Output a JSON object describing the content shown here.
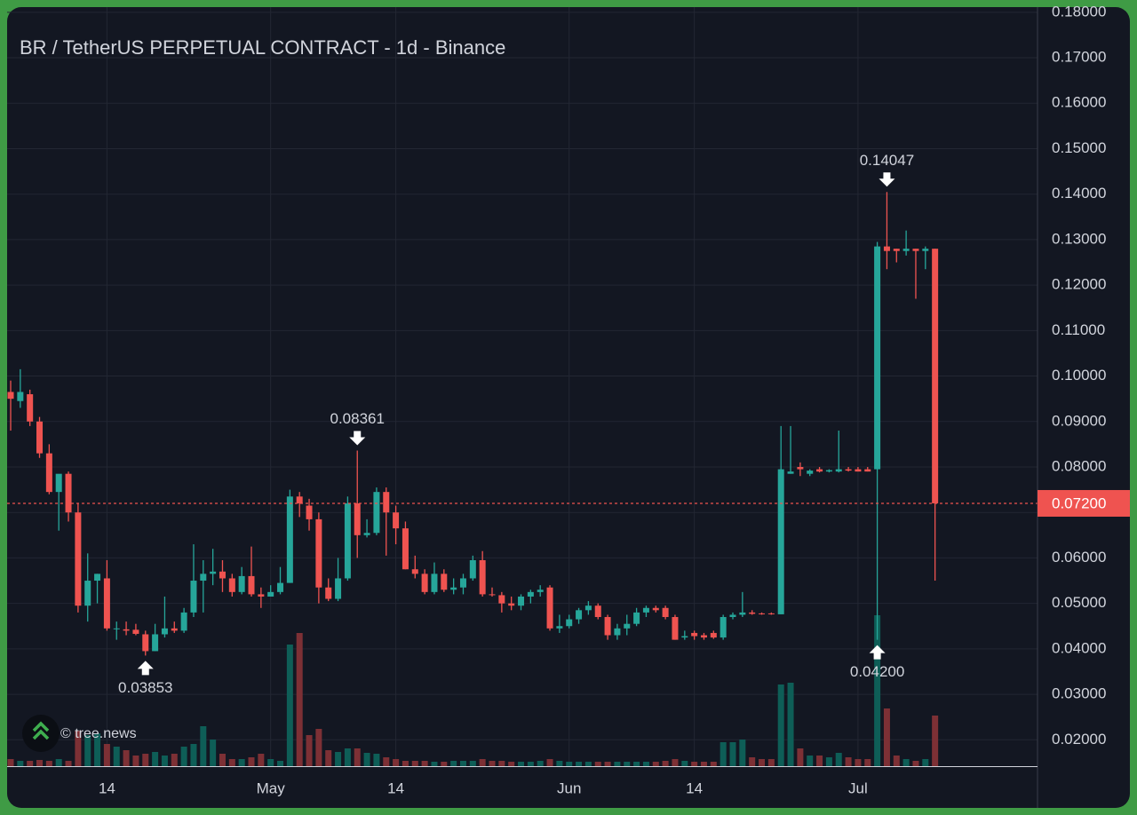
{
  "chart_data": {
    "type": "candlestick",
    "title": "BR / TetherUS PERPETUAL CONTRACT - 1d - Binance",
    "watermark": "© tree.news",
    "x": [
      "04-04",
      "04-05",
      "04-06",
      "04-07",
      "04-08",
      "04-09",
      "04-10",
      "04-11",
      "04-12",
      "04-13",
      "04-14",
      "04-15",
      "04-16",
      "04-17",
      "04-18",
      "04-19",
      "04-20",
      "04-21",
      "04-22",
      "04-23",
      "04-24",
      "04-25",
      "04-26",
      "04-27",
      "04-28",
      "04-29",
      "04-30",
      "05-01",
      "05-02",
      "05-03",
      "05-04",
      "05-05",
      "05-06",
      "05-07",
      "05-08",
      "05-09",
      "05-10",
      "05-11",
      "05-12",
      "05-13",
      "05-14",
      "05-15",
      "05-16",
      "05-17",
      "05-18",
      "05-19",
      "05-20",
      "05-21",
      "05-22",
      "05-23",
      "05-24",
      "05-25",
      "05-26",
      "05-27",
      "05-28",
      "05-29",
      "05-30",
      "05-31",
      "06-01",
      "06-02",
      "06-03",
      "06-04",
      "06-05",
      "06-06",
      "06-07",
      "06-08",
      "06-09",
      "06-10",
      "06-11",
      "06-12",
      "06-13",
      "06-14",
      "06-15",
      "06-16",
      "06-17",
      "06-18",
      "06-19",
      "06-20",
      "06-21",
      "06-22",
      "06-23",
      "06-24",
      "06-25",
      "06-26",
      "06-27",
      "06-28",
      "06-29",
      "06-30",
      "07-01",
      "07-02",
      "07-03",
      "07-04",
      "07-05",
      "07-06",
      "07-07",
      "07-08",
      "07-09"
    ],
    "open": [
      0.0965,
      0.0945,
      0.096,
      0.09,
      0.083,
      0.0745,
      0.0785,
      0.07,
      0.0495,
      0.055,
      0.0555,
      0.0445,
      0.0443,
      0.0442,
      0.0432,
      0.0395,
      0.0432,
      0.0445,
      0.044,
      0.048,
      0.055,
      0.0565,
      0.057,
      0.0555,
      0.0525,
      0.056,
      0.052,
      0.0515,
      0.0525,
      0.0545,
      0.0735,
      0.0715,
      0.0685,
      0.0535,
      0.051,
      0.0555,
      0.072,
      0.065,
      0.0655,
      0.0745,
      0.07,
      0.0665,
      0.0575,
      0.0565,
      0.0525,
      0.0565,
      0.053,
      0.0535,
      0.0555,
      0.0595,
      0.052,
      0.0518,
      0.05,
      0.0495,
      0.0515,
      0.0525,
      0.0535,
      0.0445,
      0.045,
      0.0465,
      0.0485,
      0.0495,
      0.047,
      0.043,
      0.0445,
      0.0455,
      0.048,
      0.049,
      0.049,
      0.047,
      0.0425,
      0.0435,
      0.043,
      0.0435,
      0.0425,
      0.047,
      0.0475,
      0.048,
      0.0478,
      0.0478,
      0.0476,
      0.0785,
      0.08,
      0.0785,
      0.0795,
      0.079,
      0.079,
      0.0795,
      0.0795,
      0.0795,
      0.0795,
      0.1285,
      0.128,
      0.1275,
      0.128,
      0.1275,
      0.128
    ],
    "high": [
      0.099,
      0.1015,
      0.097,
      0.091,
      0.085,
      0.078,
      0.079,
      0.072,
      0.061,
      0.0565,
      0.0595,
      0.046,
      0.046,
      0.0455,
      0.044,
      0.0455,
      0.0515,
      0.046,
      0.049,
      0.063,
      0.0595,
      0.062,
      0.0595,
      0.0565,
      0.058,
      0.0625,
      0.0535,
      0.054,
      0.058,
      0.075,
      0.0745,
      0.073,
      0.07,
      0.0555,
      0.06,
      0.0735,
      0.08361,
      0.0685,
      0.0755,
      0.0755,
      0.0715,
      0.068,
      0.0605,
      0.0575,
      0.059,
      0.0575,
      0.0555,
      0.0565,
      0.0605,
      0.0615,
      0.0535,
      0.0525,
      0.0515,
      0.052,
      0.053,
      0.054,
      0.054,
      0.0475,
      0.0475,
      0.049,
      0.0505,
      0.05,
      0.0475,
      0.0455,
      0.0475,
      0.049,
      0.0495,
      0.0495,
      0.0495,
      0.0475,
      0.044,
      0.044,
      0.0435,
      0.044,
      0.0475,
      0.048,
      0.0525,
      0.0485,
      0.048,
      0.048,
      0.089,
      0.089,
      0.081,
      0.0795,
      0.08,
      0.0795,
      0.088,
      0.08,
      0.08,
      0.08,
      0.1295,
      0.14047,
      0.128,
      0.132,
      0.128,
      0.1285,
      0.128
    ],
    "low": [
      0.088,
      0.093,
      0.089,
      0.082,
      0.074,
      0.066,
      0.068,
      0.048,
      0.046,
      0.05,
      0.044,
      0.042,
      0.043,
      0.043,
      0.03853,
      0.0395,
      0.0425,
      0.0435,
      0.0435,
      0.047,
      0.048,
      0.054,
      0.0525,
      0.0515,
      0.052,
      0.0515,
      0.049,
      0.0515,
      0.052,
      0.0545,
      0.069,
      0.066,
      0.05,
      0.0505,
      0.0505,
      0.055,
      0.06,
      0.0645,
      0.065,
      0.0605,
      0.063,
      0.0575,
      0.0555,
      0.052,
      0.052,
      0.0525,
      0.052,
      0.052,
      0.055,
      0.0515,
      0.0515,
      0.048,
      0.0485,
      0.0485,
      0.05,
      0.0515,
      0.044,
      0.0435,
      0.0445,
      0.0455,
      0.0475,
      0.0465,
      0.042,
      0.042,
      0.043,
      0.045,
      0.047,
      0.048,
      0.0465,
      0.042,
      0.042,
      0.042,
      0.042,
      0.0422,
      0.042,
      0.0465,
      0.047,
      0.0475,
      0.0475,
      0.0475,
      0.0476,
      0.0785,
      0.078,
      0.078,
      0.0788,
      0.0788,
      0.0788,
      0.079,
      0.079,
      0.079,
      0.042,
      0.1235,
      0.125,
      0.1265,
      0.117,
      0.1235,
      0.055
    ],
    "close": [
      0.095,
      0.0965,
      0.09,
      0.083,
      0.0745,
      0.0785,
      0.07,
      0.0495,
      0.055,
      0.0565,
      0.0445,
      0.0445,
      0.044,
      0.0433,
      0.0395,
      0.0432,
      0.0445,
      0.044,
      0.048,
      0.055,
      0.0565,
      0.057,
      0.0555,
      0.0525,
      0.056,
      0.052,
      0.0515,
      0.0525,
      0.0545,
      0.0735,
      0.072,
      0.0685,
      0.0535,
      0.051,
      0.0555,
      0.072,
      0.065,
      0.0655,
      0.0745,
      0.07,
      0.0665,
      0.0575,
      0.0565,
      0.0525,
      0.0565,
      0.053,
      0.0535,
      0.0555,
      0.0595,
      0.052,
      0.0518,
      0.05,
      0.0495,
      0.0515,
      0.0525,
      0.053,
      0.0445,
      0.045,
      0.0465,
      0.0485,
      0.0495,
      0.047,
      0.043,
      0.0445,
      0.0455,
      0.048,
      0.049,
      0.0485,
      0.047,
      0.042,
      0.0428,
      0.0428,
      0.0425,
      0.0425,
      0.047,
      0.0475,
      0.048,
      0.0477,
      0.0477,
      0.0476,
      0.0795,
      0.079,
      0.0795,
      0.0792,
      0.079,
      0.0793,
      0.0795,
      0.0792,
      0.079,
      0.079,
      0.1285,
      0.1275,
      0.1275,
      0.128,
      0.1275,
      0.128,
      0.072
    ],
    "volume": [
      8,
      6,
      6,
      7,
      6,
      8,
      6,
      40,
      35,
      37,
      25,
      22,
      18,
      12,
      14,
      16,
      12,
      14,
      22,
      25,
      45,
      30,
      14,
      8,
      8,
      10,
      14,
      8,
      6,
      137,
      150,
      35,
      42,
      18,
      16,
      20,
      20,
      15,
      14,
      10,
      8,
      6,
      6,
      6,
      5,
      5,
      6,
      6,
      6,
      8,
      6,
      6,
      5,
      5,
      5,
      6,
      8,
      6,
      5,
      5,
      5,
      5,
      5,
      5,
      5,
      5,
      5,
      5,
      6,
      8,
      6,
      5,
      5,
      5,
      27,
      27,
      30,
      10,
      8,
      8,
      92,
      94,
      20,
      12,
      12,
      10,
      15,
      10,
      8,
      8,
      170,
      65,
      12,
      8,
      6,
      8,
      57
    ],
    "up_color": "#26a69a",
    "down_color": "#ef5350",
    "volume_up_color": "#0e5e57",
    "volume_down_color": "#7d3035",
    "ylim": [
      0.0142,
      0.1827
    ],
    "yticks": [
      {
        "value": 0.02,
        "label": "0.02000"
      },
      {
        "value": 0.03,
        "label": "0.03000"
      },
      {
        "value": 0.04,
        "label": "0.04000"
      },
      {
        "value": 0.05,
        "label": "0.05000"
      },
      {
        "value": 0.06,
        "label": "0.06000"
      },
      {
        "value": 0.07,
        "label": "0.07000"
      },
      {
        "value": 0.08,
        "label": "0.08000"
      },
      {
        "value": 0.09,
        "label": "0.09000"
      },
      {
        "value": 0.1,
        "label": "0.10000"
      },
      {
        "value": 0.11,
        "label": "0.11000"
      },
      {
        "value": 0.12,
        "label": "0.12000"
      },
      {
        "value": 0.13,
        "label": "0.13000"
      },
      {
        "value": 0.14,
        "label": "0.14000"
      },
      {
        "value": 0.15,
        "label": "0.15000"
      },
      {
        "value": 0.16,
        "label": "0.16000"
      },
      {
        "value": 0.17,
        "label": "0.17000"
      },
      {
        "value": 0.18,
        "label": "0.18000"
      }
    ],
    "xticks": [
      {
        "value": "04-14",
        "label": "14"
      },
      {
        "value": "05-01",
        "label": "May"
      },
      {
        "value": "05-14",
        "label": "14"
      },
      {
        "value": "06-01",
        "label": "Jun"
      },
      {
        "value": "06-14",
        "label": "14"
      },
      {
        "value": "07-01",
        "label": "Jul"
      }
    ],
    "grid": true,
    "last_price": {
      "value": 0.072,
      "label": "0.07200"
    },
    "annotations": [
      {
        "date": "04-18",
        "value": 0.03853,
        "label": "0.03853",
        "position": "below"
      },
      {
        "date": "05-10",
        "value": 0.08361,
        "label": "0.08361",
        "position": "above"
      },
      {
        "date": "07-04",
        "value": 0.14047,
        "label": "0.14047",
        "position": "above"
      },
      {
        "date": "07-03",
        "value": 0.042,
        "label": "0.04200",
        "position": "below"
      }
    ]
  }
}
